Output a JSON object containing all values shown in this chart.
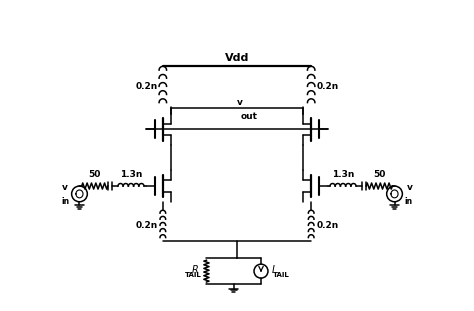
{
  "bg_color": "#ffffff",
  "line_color": "#000000",
  "labels": {
    "vdd": "Vdd",
    "vout_v": "v",
    "vout_out": "out",
    "ind_02n": "0.2n",
    "ind_13n": "1.3n",
    "r50": "50",
    "r_tail_r": "R",
    "r_tail_sub": "TAIL",
    "i_tail_i": "I",
    "i_tail_sub": "TAIL",
    "vin_v": "v",
    "vin_sub": "in"
  },
  "xlim": [
    0,
    10
  ],
  "ylim": [
    0,
    7
  ],
  "figsize": [
    4.74,
    3.11
  ],
  "dpi": 100
}
